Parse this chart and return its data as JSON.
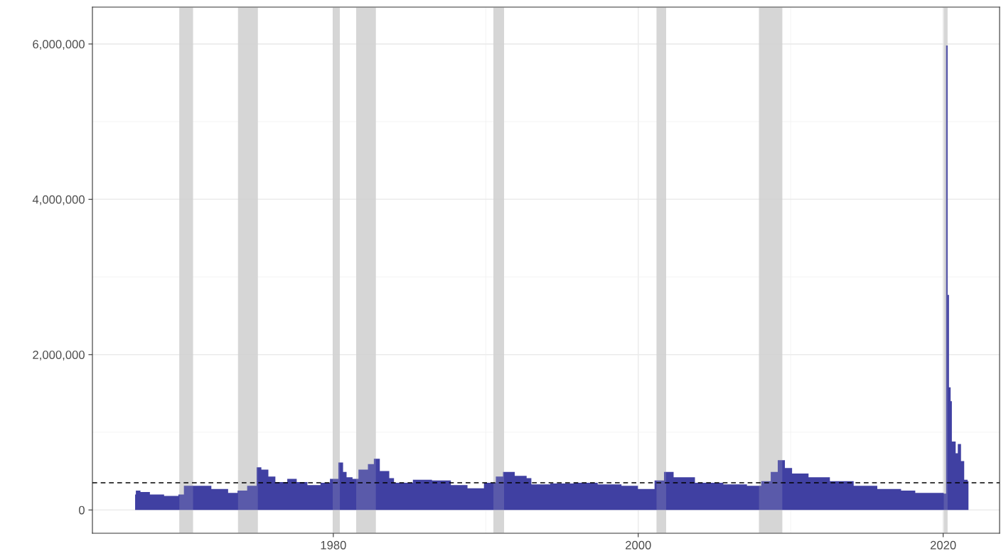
{
  "chart_data": {
    "type": "area",
    "x": [
      1967.0,
      1967.05,
      1967.35,
      1967.97,
      1968.9,
      1969.84,
      1970.2,
      1970.77,
      1972.0,
      1973.1,
      1973.72,
      1974.35,
      1974.97,
      1975.28,
      1975.74,
      1976.2,
      1976.98,
      1977.6,
      1978.3,
      1979.16,
      1979.78,
      1980.33,
      1980.64,
      1980.87,
      1981.26,
      1981.65,
      1982.27,
      1982.66,
      1983.05,
      1983.67,
      1983.98,
      1985.22,
      1986.47,
      1987.71,
      1988.8,
      1989.88,
      1990.66,
      1991.13,
      1991.9,
      1992.68,
      1992.99,
      1994.23,
      1995.79,
      1997.34,
      1998.9,
      1999.98,
      2001.07,
      2001.69,
      2002.32,
      2003.25,
      2003.72,
      2005.58,
      2007.13,
      2008.07,
      2008.69,
      2009.15,
      2009.62,
      2010.09,
      2011.17,
      2012.57,
      2014.13,
      2015.68,
      2017.24,
      2018.17,
      2020.04,
      2020.19,
      2020.3,
      2020.38,
      2020.49,
      2020.57,
      2020.82,
      2020.96,
      2021.17,
      2021.38,
      2021.6,
      2021.66
    ],
    "series": [
      {
        "color": "#4040a2",
        "values": [
          200000,
          250000,
          230000,
          200000,
          180000,
          200000,
          310000,
          310000,
          270000,
          220000,
          250000,
          310000,
          550000,
          520000,
          430000,
          360000,
          400000,
          360000,
          320000,
          350000,
          400000,
          610000,
          490000,
          420000,
          400000,
          520000,
          590000,
          660000,
          500000,
          410000,
          350000,
          390000,
          380000,
          320000,
          280000,
          350000,
          430000,
          490000,
          440000,
          410000,
          330000,
          340000,
          350000,
          330000,
          310000,
          270000,
          380000,
          490000,
          420000,
          420000,
          350000,
          330000,
          310000,
          370000,
          490000,
          640000,
          540000,
          470000,
          420000,
          370000,
          310000,
          270000,
          250000,
          220000,
          210000,
          5980000,
          2770000,
          1580000,
          1400000,
          880000,
          730000,
          850000,
          630000,
          390000,
          370000,
          370000
        ]
      }
    ],
    "xlim": [
      1964.2,
      2023.7
    ],
    "xticks": [
      1980,
      2000,
      2020
    ],
    "ylim": [
      -300000,
      6475000
    ],
    "yticks": [
      {
        "value": 0,
        "label": "0"
      },
      {
        "value": 2000000,
        "label": "2,000,000"
      },
      {
        "value": 4000000,
        "label": "4,000,000"
      },
      {
        "value": 6000000,
        "label": "6,000,000"
      }
    ],
    "grid": true,
    "ref_lines": [
      {
        "axis": "y",
        "value": 350000,
        "line_style": "dashed",
        "color": "#000000"
      }
    ],
    "bands": [
      {
        "axis": "x",
        "from": 1969.9,
        "to": 1970.8,
        "color": "#d3d3d3"
      },
      {
        "axis": "x",
        "from": 1973.75,
        "to": 1975.05,
        "color": "#d3d3d3"
      },
      {
        "axis": "x",
        "from": 1979.96,
        "to": 1980.43,
        "color": "#d3d3d3"
      },
      {
        "axis": "x",
        "from": 1981.5,
        "to": 1982.79,
        "color": "#d3d3d3"
      },
      {
        "axis": "x",
        "from": 1990.5,
        "to": 1991.2,
        "color": "#d3d3d3"
      },
      {
        "axis": "x",
        "from": 2001.2,
        "to": 2001.83,
        "color": "#d3d3d3"
      },
      {
        "axis": "x",
        "from": 2007.92,
        "to": 2009.45,
        "color": "#d3d3d3"
      },
      {
        "axis": "x",
        "from": 2020.04,
        "to": 2020.29,
        "color": "#d3d3d3"
      }
    ]
  }
}
